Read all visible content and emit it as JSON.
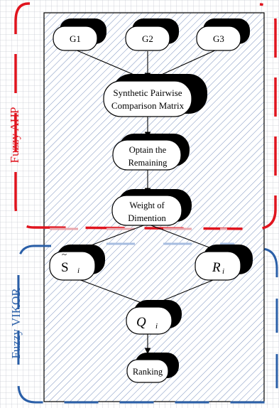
{
  "colors": {
    "ahp": "#e0141e",
    "vikor": "#2a5fa8",
    "grid": "#c9ccd3",
    "hatch": "#6c86b8"
  },
  "groups": {
    "ahp_label": "Fuzzy AHP",
    "vikor_label": "Fuzzy VIKOR"
  },
  "nodes": {
    "g1": "G1",
    "g2": "G2",
    "g3": "G3",
    "pairwise_line1": "Synthetic Pairwise",
    "pairwise_line2": "Comparison Matrix",
    "obtain_line1": "Optain the",
    "obtain_line2": "Remaining",
    "weight_line1": "Weight of",
    "weight_line2": "Dimention",
    "s_base": "S",
    "s_tilde": "~",
    "s_sub": "i",
    "r_base": "R",
    "r_sub": "i",
    "q_base": "Q",
    "q_sub": "i",
    "ranking": "Ranking"
  }
}
